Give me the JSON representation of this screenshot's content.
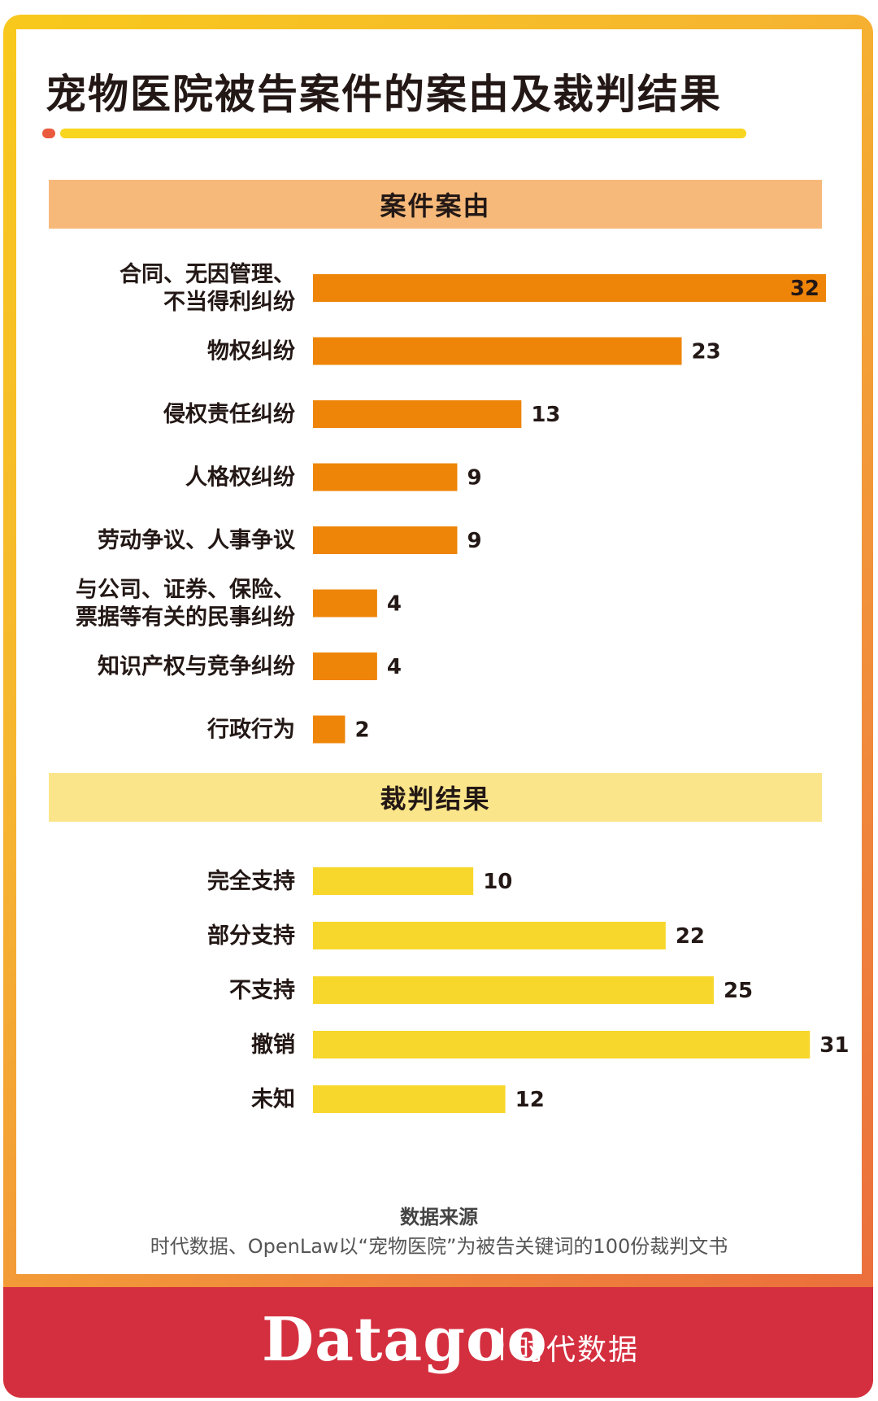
{
  "title": "宠物医院被告案件的案由及裁判结果",
  "colors": {
    "cause_bar": "#ee8508",
    "result_bar": "#f8d72c",
    "cause_band": "#f6b97a",
    "result_band": "#fbe58a",
    "footer": "#d42f3f"
  },
  "chart_data": [
    {
      "type": "bar",
      "orientation": "horizontal",
      "title": "案件案由",
      "categories": [
        "合同、无因管理、\n不当得利纠纷",
        "物权纠纷",
        "侵权责任纠纷",
        "人格权纠纷",
        "劳动争议、人事争议",
        "与公司、证券、保险、\n票据等有关的民事纠纷",
        "知识产权与竞争纠纷",
        "行政行为"
      ],
      "values": [
        32,
        23,
        13,
        9,
        9,
        4,
        4,
        2
      ],
      "xlim": [
        0,
        32
      ],
      "grid": false,
      "legend": "none"
    },
    {
      "type": "bar",
      "orientation": "horizontal",
      "title": "裁判结果",
      "categories": [
        "完全支持",
        "部分支持",
        "不支持",
        "撤销",
        "未知"
      ],
      "values": [
        10,
        22,
        25,
        31,
        12
      ],
      "xlim": [
        0,
        32
      ],
      "grid": false,
      "legend": "none"
    }
  ],
  "source": {
    "title": "数据来源",
    "text": "时代数据、OpenLaw以“宠物医院”为被告关键词的100份裁判文书"
  },
  "footer": {
    "logo": "Datagoo",
    "brand": "时代数据"
  }
}
